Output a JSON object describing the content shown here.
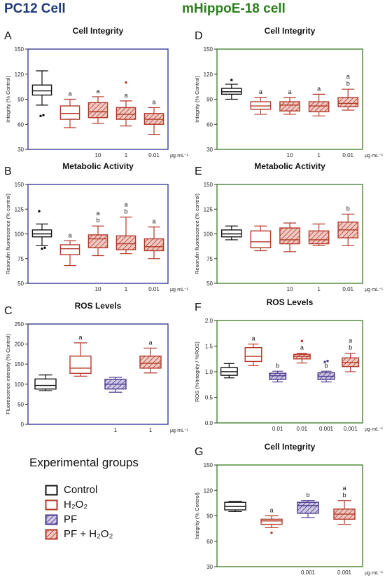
{
  "headers": {
    "left": "PC12 Cell",
    "right": "mHippoE-18 cell",
    "left_color": "#1f3a78",
    "right_color": "#2e7d1f"
  },
  "colors": {
    "control": "#111111",
    "h2o2": "#b23a2a",
    "pf": "#4b3a8c",
    "pf_fill": "#cfc7e6",
    "pf_h2o2": "#b23a2a",
    "pf_h2o2_fill": "#f1c9c3",
    "frame_pc12": "#2b2f8f",
    "frame_hippo": "#3a7d22"
  },
  "legend": {
    "title": "Experimental groups",
    "items": [
      {
        "label": "Control",
        "key": "control"
      },
      {
        "label": "H₂O₂",
        "key": "h2o2"
      },
      {
        "label": "PF",
        "key": "pf"
      },
      {
        "label": "PF + H₂O₂",
        "key": "pf_h2o2"
      }
    ]
  },
  "chart_data": [
    {
      "panel": "A",
      "type": "box",
      "title": "Cell Integrity",
      "ylabel": "Integrity (% Control)",
      "ylim": [
        30,
        150
      ],
      "yticks": [
        30,
        60,
        90,
        120,
        150
      ],
      "xunit": "μg·mL⁻¹",
      "groups": [
        {
          "group": "control",
          "xlabel": "",
          "min": 83,
          "q1": 95,
          "median": 100,
          "q3": 107,
          "max": 124,
          "outliers": [
            70,
            71
          ],
          "letters": ""
        },
        {
          "group": "h2o2",
          "xlabel": "",
          "min": 56,
          "q1": 66,
          "median": 73,
          "q3": 82,
          "max": 90,
          "outliers": [],
          "letters": "a"
        },
        {
          "group": "pf_h2o2",
          "xlabel": "10",
          "min": 61,
          "q1": 68,
          "median": 75,
          "q3": 86,
          "max": 93,
          "outliers": [],
          "letters": "a"
        },
        {
          "group": "pf_h2o2",
          "xlabel": "1",
          "min": 58,
          "q1": 66,
          "median": 72,
          "q3": 80,
          "max": 88,
          "outliers": [
            110
          ],
          "letters": "a"
        },
        {
          "group": "pf_h2o2",
          "xlabel": "0.01",
          "min": 48,
          "q1": 60,
          "median": 66,
          "q3": 73,
          "max": 80,
          "outliers": [],
          "letters": "a"
        }
      ]
    },
    {
      "panel": "B",
      "type": "box",
      "title": "Metabolic Activity",
      "ylabel": "Resorufin fluorescence (% control)",
      "ylim": [
        50,
        150
      ],
      "yticks": [
        50,
        75,
        100,
        125,
        150
      ],
      "xunit": "μg·mL⁻¹",
      "groups": [
        {
          "group": "control",
          "xlabel": "",
          "min": 88,
          "q1": 97,
          "median": 100,
          "q3": 104,
          "max": 110,
          "outliers": [
            123,
            85,
            86
          ],
          "letters": ""
        },
        {
          "group": "h2o2",
          "xlabel": "",
          "min": 68,
          "q1": 79,
          "median": 85,
          "q3": 89,
          "max": 93,
          "outliers": [],
          "letters": "a"
        },
        {
          "group": "pf_h2o2",
          "xlabel": "10",
          "min": 78,
          "q1": 86,
          "median": 95,
          "q3": 99,
          "max": 108,
          "outliers": [],
          "letters": "a\nb"
        },
        {
          "group": "pf_h2o2",
          "xlabel": "1",
          "min": 80,
          "q1": 84,
          "median": 90,
          "q3": 98,
          "max": 117,
          "outliers": [],
          "letters": "a\nb"
        },
        {
          "group": "pf_h2o2",
          "xlabel": "0.01",
          "min": 75,
          "q1": 83,
          "median": 87,
          "q3": 95,
          "max": 107,
          "outliers": [],
          "letters": "a"
        }
      ]
    },
    {
      "panel": "C",
      "type": "box",
      "title": "ROS Levels",
      "ylabel": "Fluorescence intensity (% Control)",
      "ylim": [
        0,
        250
      ],
      "yticks": [
        0,
        50,
        100,
        150,
        200,
        250
      ],
      "xunit": "μg·mL⁻¹",
      "groups": [
        {
          "group": "control",
          "xlabel": "",
          "min": 84,
          "q1": 88,
          "median": 97,
          "q3": 113,
          "max": 123,
          "outliers": [],
          "letters": ""
        },
        {
          "group": "h2o2",
          "xlabel": "",
          "min": 120,
          "q1": 127,
          "median": 140,
          "q3": 170,
          "max": 203,
          "outliers": [],
          "letters": "a"
        },
        {
          "group": "pf",
          "xlabel": "1",
          "min": 80,
          "q1": 88,
          "median": 100,
          "q3": 112,
          "max": 117,
          "outliers": [],
          "letters": ""
        },
        {
          "group": "pf_h2o2",
          "xlabel": "1",
          "min": 128,
          "q1": 140,
          "median": 152,
          "q3": 170,
          "max": 190,
          "outliers": [],
          "letters": "a"
        }
      ]
    },
    {
      "panel": "D",
      "type": "box",
      "title": "Cell Integrity",
      "ylabel": "Integrity (% Control)",
      "ylim": [
        30,
        150
      ],
      "yticks": [
        30,
        60,
        90,
        120,
        150
      ],
      "xunit": "μg·mL⁻¹",
      "groups": [
        {
          "group": "control",
          "xlabel": "",
          "min": 90,
          "q1": 96,
          "median": 99,
          "q3": 103,
          "max": 108,
          "outliers": [
            113
          ],
          "letters": ""
        },
        {
          "group": "h2o2",
          "xlabel": "",
          "min": 72,
          "q1": 78,
          "median": 82,
          "q3": 87,
          "max": 92,
          "outliers": [],
          "letters": "a"
        },
        {
          "group": "pf_h2o2",
          "xlabel": "10",
          "min": 72,
          "q1": 76,
          "median": 83,
          "q3": 87,
          "max": 92,
          "outliers": [],
          "letters": "a"
        },
        {
          "group": "pf_h2o2",
          "xlabel": "1",
          "min": 70,
          "q1": 75,
          "median": 82,
          "q3": 87,
          "max": 96,
          "outliers": [],
          "letters": "a"
        },
        {
          "group": "pf_h2o2",
          "xlabel": "0.01",
          "min": 77,
          "q1": 81,
          "median": 85,
          "q3": 92,
          "max": 102,
          "outliers": [],
          "letters": "a\nb"
        }
      ]
    },
    {
      "panel": "E",
      "type": "box",
      "title": "Metabolic Activity",
      "ylabel": "Resorufin fluorescence (% control)",
      "ylim": [
        50,
        150
      ],
      "yticks": [
        50,
        75,
        100,
        125,
        150
      ],
      "xunit": "μg·mL⁻¹",
      "groups": [
        {
          "group": "control",
          "xlabel": "",
          "min": 94,
          "q1": 97,
          "median": 100,
          "q3": 104,
          "max": 108,
          "outliers": [],
          "letters": ""
        },
        {
          "group": "h2o2",
          "xlabel": "",
          "min": 83,
          "q1": 86,
          "median": 92,
          "q3": 103,
          "max": 108,
          "outliers": [],
          "letters": ""
        },
        {
          "group": "pf_h2o2",
          "xlabel": "10",
          "min": 82,
          "q1": 90,
          "median": 94,
          "q3": 106,
          "max": 111,
          "outliers": [],
          "letters": ""
        },
        {
          "group": "pf_h2o2",
          "xlabel": "1",
          "min": 88,
          "q1": 90,
          "median": 94,
          "q3": 103,
          "max": 110,
          "outliers": [],
          "letters": ""
        },
        {
          "group": "pf_h2o2",
          "xlabel": "0.01",
          "min": 88,
          "q1": 96,
          "median": 104,
          "q3": 112,
          "max": 120,
          "outliers": [],
          "letters": "b"
        }
      ]
    },
    {
      "panel": "F",
      "type": "box",
      "title": "ROS Levels",
      "ylabel": "ROS (%Integrity / %ROS)",
      "ylim": [
        0.0,
        2.0
      ],
      "yticks": [
        0.0,
        0.5,
        1.0,
        1.5,
        2.0
      ],
      "ytick_decimals": 1,
      "xunit": "μg·mL⁻¹",
      "groups": [
        {
          "group": "control",
          "xlabel": "",
          "min": 0.88,
          "q1": 0.93,
          "median": 1.0,
          "q3": 1.08,
          "max": 1.16,
          "outliers": [],
          "letters": ""
        },
        {
          "group": "h2o2",
          "xlabel": "",
          "min": 1.12,
          "q1": 1.2,
          "median": 1.3,
          "q3": 1.47,
          "max": 1.54,
          "outliers": [],
          "letters": "a"
        },
        {
          "group": "pf",
          "xlabel": "0.01",
          "min": 0.8,
          "q1": 0.85,
          "median": 0.92,
          "q3": 0.97,
          "max": 1.01,
          "outliers": [],
          "letters": "b"
        },
        {
          "group": "pf_h2o2",
          "xlabel": "0.01",
          "min": 1.17,
          "q1": 1.25,
          "median": 1.3,
          "q3": 1.34,
          "max": 1.36,
          "outliers": [
            1.6
          ],
          "letters": "a"
        },
        {
          "group": "pf",
          "xlabel": "0.001",
          "min": 0.8,
          "q1": 0.85,
          "median": 0.91,
          "q3": 0.98,
          "max": 1.01,
          "outliers": [
            1.19,
            1.21
          ],
          "letters": "b"
        },
        {
          "group": "pf_h2o2",
          "xlabel": "0.001",
          "min": 1.0,
          "q1": 1.1,
          "median": 1.18,
          "q3": 1.27,
          "max": 1.36,
          "outliers": [],
          "letters": "a\nb"
        }
      ]
    },
    {
      "panel": "G",
      "type": "box",
      "title": "Cell Integrity",
      "ylabel": "Integrity (% Control)",
      "ylim": [
        30,
        150
      ],
      "yticks": [
        30,
        60,
        90,
        120,
        150
      ],
      "xunit": "μg·mL⁻¹",
      "groups": [
        {
          "group": "control",
          "xlabel": "",
          "min": 95,
          "q1": 97,
          "median": 101,
          "q3": 106,
          "max": 107,
          "outliers": [],
          "letters": ""
        },
        {
          "group": "h2o2",
          "xlabel": "",
          "min": 76,
          "q1": 80,
          "median": 84,
          "q3": 86,
          "max": 90,
          "outliers": [
            70
          ],
          "letters": "a"
        },
        {
          "group": "pf",
          "xlabel": "0.001",
          "min": 88,
          "q1": 93,
          "median": 102,
          "q3": 106,
          "max": 108,
          "outliers": [],
          "letters": "b"
        },
        {
          "group": "pf_h2o2",
          "xlabel": "0.001",
          "min": 80,
          "q1": 86,
          "median": 92,
          "q3": 98,
          "max": 108,
          "outliers": [],
          "letters": "a\nb"
        }
      ]
    }
  ]
}
